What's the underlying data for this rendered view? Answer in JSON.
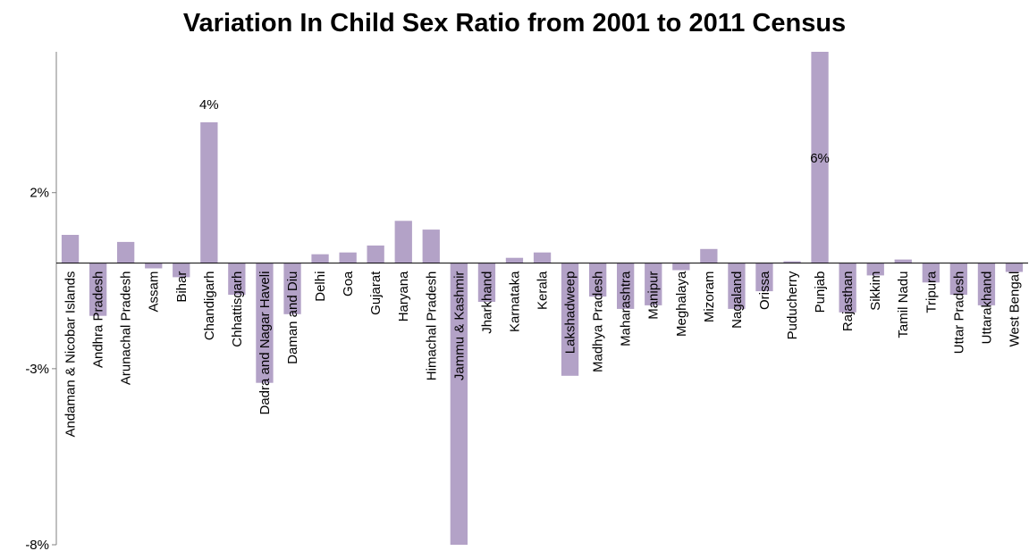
{
  "chart_data": {
    "type": "bar",
    "title": "Variation In Child Sex Ratio from 2001 to 2011 Census",
    "xlabel": "",
    "ylabel": "",
    "ylim": [
      -8,
      6
    ],
    "y_ticks": [
      "2%",
      "-3%",
      "-8%"
    ],
    "y_tick_values": [
      2,
      -3,
      -8
    ],
    "grid": false,
    "bar_color": "#b3a2c7",
    "categories": [
      "Andaman & Nicobar Islands",
      "Andhra Pradesh",
      "Arunachal Pradesh",
      "Assam",
      "Bihar",
      "Chandigarh",
      "Chhattisgarh",
      "Dadra and Nagar Haveli",
      "Daman and Diu",
      "Delhi",
      "Goa",
      "Gujarat",
      "Haryana",
      "Himachal Pradesh",
      "Jammu & Kashmir",
      "Jharkhand",
      "Karnataka",
      "Kerala",
      "Lakshadweep",
      "Madhya Pradesh",
      "Maharashtra",
      "Manipur",
      "Meghalaya",
      "Mizoram",
      "Nagaland",
      "Orissa",
      "Puducherry",
      "Punjab",
      "Rajasthan",
      "Sikkim",
      "Tamil Nadu",
      "Tripura",
      "Uttar Pradesh",
      "Uttarakhand",
      "West Bengal"
    ],
    "values": [
      0.8,
      -1.5,
      0.6,
      -0.15,
      -0.4,
      4.0,
      -0.9,
      -3.4,
      -1.45,
      0.25,
      0.3,
      0.5,
      1.2,
      0.95,
      -8.0,
      -1.1,
      0.15,
      0.3,
      -3.2,
      -0.95,
      -1.3,
      -1.2,
      -0.2,
      0.4,
      -1.3,
      -0.8,
      0.05,
      6.0,
      -1.4,
      -0.35,
      0.1,
      -0.55,
      -0.9,
      -1.2,
      -0.25
    ],
    "data_labels": [
      {
        "category": "Chandigarh",
        "text": "4%"
      },
      {
        "category": "Punjab",
        "text": "6%"
      }
    ]
  }
}
